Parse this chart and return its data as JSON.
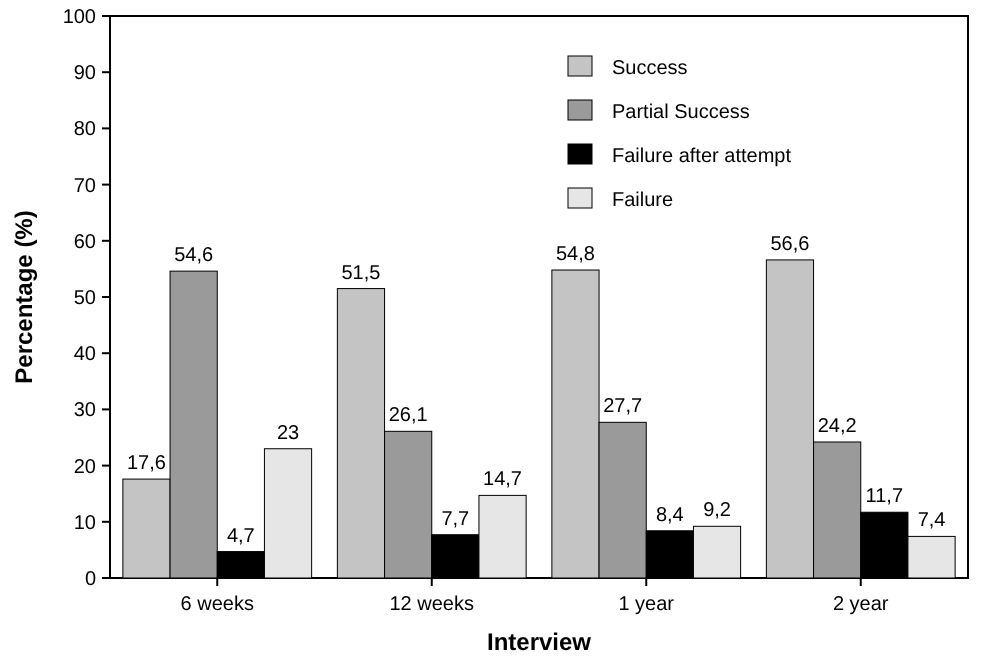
{
  "chart_data": {
    "type": "bar",
    "xlabel": "Interview",
    "ylabel": "Percentage (%)",
    "categories": [
      "6 weeks",
      "12 weeks",
      "1 year",
      "2 year"
    ],
    "series": [
      {
        "name": "Success",
        "color": "#c4c4c4",
        "values": [
          17.6,
          51.5,
          54.8,
          56.6
        ],
        "value_labels": [
          "17,6",
          "51,5",
          "54,8",
          "56,6"
        ]
      },
      {
        "name": "Partial Success",
        "color": "#9a9a9a",
        "values": [
          54.6,
          26.1,
          27.7,
          24.2
        ],
        "value_labels": [
          "54,6",
          "26,1",
          "27,7",
          "24,2"
        ]
      },
      {
        "name": "Failure after attempt",
        "color": "#000000",
        "values": [
          4.7,
          7.7,
          8.4,
          11.7
        ],
        "value_labels": [
          "4,7",
          "7,7",
          "8,4",
          "11,7"
        ]
      },
      {
        "name": "Failure",
        "color": "#e6e6e6",
        "values": [
          23,
          14.7,
          9.2,
          7.4
        ],
        "value_labels": [
          "23",
          "14,7",
          "9,2",
          "7,4"
        ]
      }
    ],
    "ylim": [
      0,
      100
    ],
    "yticks": [
      0,
      10,
      20,
      30,
      40,
      50,
      60,
      70,
      80,
      90,
      100
    ],
    "grid": false,
    "legend": "top right"
  }
}
